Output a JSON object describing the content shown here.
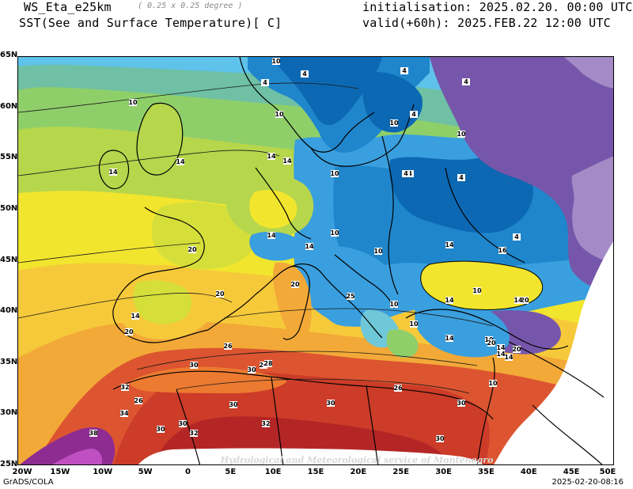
{
  "header": {
    "model": "WS_Eta_e25km",
    "resolution": "( 0.25 x 0.25 degree )",
    "field": "SST(See and Surface Temperature)[ C]",
    "initialisation": "initialisation: 2025.02.20. 00:00 UTC",
    "valid": "valid(+60h): 2025.FEB.22 12:00 UTC"
  },
  "map": {
    "watermark": "Hydrological and Meteorological service of Montenegro",
    "lat_ticks": [
      "65N",
      "60N",
      "55N",
      "50N",
      "45N",
      "40N",
      "35N",
      "30N",
      "25N"
    ],
    "lon_ticks": [
      "20W",
      "15W",
      "10W",
      "5W",
      "0",
      "5E",
      "10E",
      "15E",
      "20E",
      "25E",
      "30E",
      "35E",
      "40E",
      "45E",
      "50E"
    ],
    "contour_labels": [
      "10",
      "4",
      "4",
      "4",
      "4",
      "10",
      "10",
      "10",
      "4",
      "10",
      "4",
      "14",
      "14",
      "14",
      "14",
      "10",
      "4",
      "4",
      "10",
      "4",
      "10",
      "14",
      "16",
      "14",
      "20",
      "20",
      "14",
      "10",
      "14",
      "20",
      "25",
      "14",
      "20",
      "10",
      "10",
      "14",
      "10",
      "14",
      "20",
      "20",
      "10",
      "14",
      "14",
      "20",
      "14",
      "26",
      "30",
      "30",
      "26",
      "30",
      "28",
      "32",
      "26",
      "34",
      "30",
      "38",
      "30",
      "32",
      "32",
      "30",
      "26",
      "30",
      "30"
    ],
    "colors": {
      "c1": "#7656aa",
      "c2": "#a48ac6",
      "c4": "#0c68b3",
      "c6": "#1f86cc",
      "c8": "#3a9fde",
      "c10": "#5ec2ea",
      "c12": "#6fc8d8",
      "c13": "#6fc0a4",
      "c14": "#8fcf6a",
      "c16": "#b6d64c",
      "c18": "#d6df3a",
      "c20": "#f2e52e",
      "c22": "#f6c93a",
      "c24": "#f2a938",
      "c26": "#ec7a30",
      "c28": "#dc5530",
      "c30": "#cc3c28",
      "c32": "#b42626",
      "c34": "#a01c4a",
      "c36": "#8e2c92",
      "c38": "#c050c2"
    }
  },
  "footer": {
    "left": "GrADS/COLA",
    "right": "2025-02-20-08:16"
  }
}
